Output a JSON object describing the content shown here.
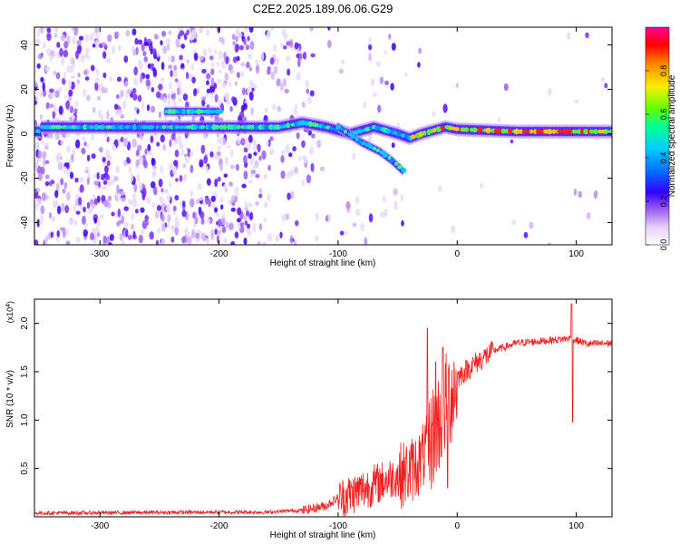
{
  "figure": {
    "title": "C2E2.2025.189.06.06.G29"
  },
  "chart_data": [
    {
      "type": "heatmap",
      "xlabel": "Height of straight line (km)",
      "ylabel": "Frequency (Hz)",
      "xlim": [
        -355,
        130
      ],
      "ylim": [
        -50,
        48
      ],
      "xticks": [
        -300,
        -200,
        -100,
        0,
        100
      ],
      "yticks": [
        -40,
        -20,
        0,
        20,
        40
      ],
      "colorbar": {
        "label": "Normalized spectral amplitude",
        "range": [
          0,
          1
        ],
        "ticks": [
          0.0,
          0.2,
          0.4,
          0.6,
          0.8
        ],
        "colormap": [
          "#ffffff",
          "#d8b8f8",
          "#8a2be2",
          "#3300ff",
          "#0066ff",
          "#00ccff",
          "#00ff99",
          "#66ff00",
          "#ffee00",
          "#ff8800",
          "#ff0000",
          "#ff0099"
        ]
      },
      "ridge": [
        {
          "x": -350,
          "f": 3
        },
        {
          "x": -300,
          "f": 3
        },
        {
          "x": -250,
          "f": 3
        },
        {
          "x": -200,
          "f": 3
        },
        {
          "x": -150,
          "f": 3
        },
        {
          "x": -130,
          "f": 5
        },
        {
          "x": -110,
          "f": 3
        },
        {
          "x": -90,
          "f": 0
        },
        {
          "x": -70,
          "f": 3
        },
        {
          "x": -50,
          "f": 0
        },
        {
          "x": -40,
          "f": -2
        },
        {
          "x": -30,
          "f": 0
        },
        {
          "x": -10,
          "f": 3
        },
        {
          "x": 0,
          "f": 2
        },
        {
          "x": 50,
          "f": 1
        },
        {
          "x": 100,
          "f": 1
        },
        {
          "x": 130,
          "f": 1
        }
      ],
      "upper_band": {
        "x": [
          -245,
          -200
        ],
        "f": 10
      },
      "lower_branch": [
        {
          "x": -100,
          "f": 3
        },
        {
          "x": -80,
          "f": -4
        },
        {
          "x": -65,
          "f": -8
        },
        {
          "x": -55,
          "f": -12
        },
        {
          "x": -45,
          "f": -17
        }
      ],
      "noise_region_end": -165
    },
    {
      "type": "line",
      "xlabel": "Height of straight line (km)",
      "ylabel": "SNR (10 * v/v)",
      "yexp": "(x10",
      "yexp_sup": "4",
      "yexp_close": ")",
      "xlim": [
        -355,
        130
      ],
      "ylim": [
        0,
        2.25
      ],
      "xticks": [
        -300,
        -200,
        -100,
        0,
        100
      ],
      "yticks": [
        0.5,
        1.0,
        1.5,
        2.0
      ],
      "ytick_labels": [
        "0.5",
        "1.0",
        "1.5",
        "2.0"
      ],
      "series": [
        {
          "color": "#ee2020",
          "envelope": [
            {
              "x": -355,
              "y": 0.04
            },
            {
              "x": -200,
              "y": 0.05
            },
            {
              "x": -160,
              "y": 0.05
            },
            {
              "x": -130,
              "y": 0.07
            },
            {
              "x": -110,
              "y": 0.12
            },
            {
              "x": -100,
              "y": 0.2
            },
            {
              "x": -80,
              "y": 0.3
            },
            {
              "x": -60,
              "y": 0.4
            },
            {
              "x": -40,
              "y": 0.5
            },
            {
              "x": -30,
              "y": 0.62
            },
            {
              "x": -20,
              "y": 0.9
            },
            {
              "x": -10,
              "y": 1.2
            },
            {
              "x": 0,
              "y": 1.45
            },
            {
              "x": 15,
              "y": 1.6
            },
            {
              "x": 30,
              "y": 1.72
            },
            {
              "x": 50,
              "y": 1.8
            },
            {
              "x": 80,
              "y": 1.83
            },
            {
              "x": 95,
              "y": 1.85
            },
            {
              "x": 110,
              "y": 1.79
            },
            {
              "x": 130,
              "y": 1.8
            }
          ],
          "spikes": [
            {
              "x": -25,
              "y": 1.95
            },
            {
              "x": -18,
              "y": 1.6
            },
            {
              "x": -12,
              "y": 1.75
            },
            {
              "x": -8,
              "y": 0.3
            },
            {
              "x": 96,
              "y": 2.2
            },
            {
              "x": 97,
              "y": 0.98
            }
          ]
        }
      ]
    }
  ]
}
